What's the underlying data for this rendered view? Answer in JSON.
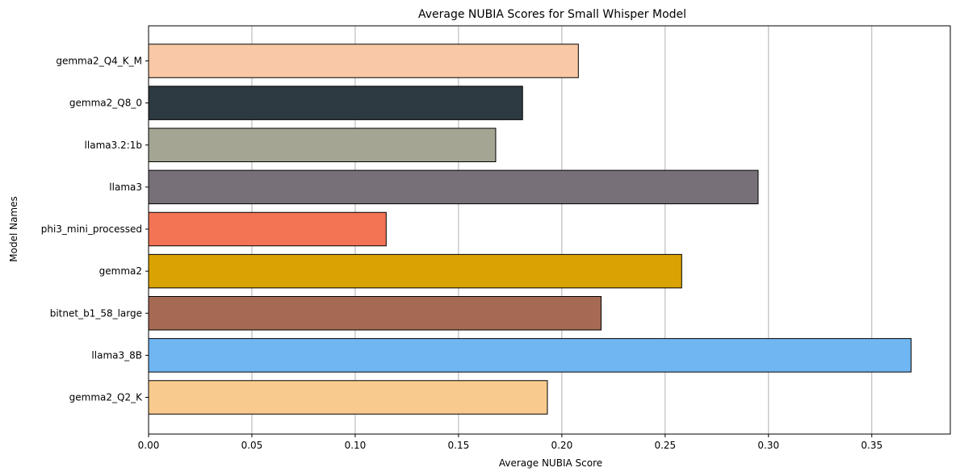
{
  "chart_data": {
    "type": "bar",
    "orientation": "horizontal",
    "title": "Average NUBIA Scores for Small Whisper Model",
    "xlabel": "Average NUBIA Score",
    "ylabel": "Model Names",
    "xlim": [
      0,
      0.388
    ],
    "xticks": [
      0.0,
      0.05,
      0.1,
      0.15,
      0.2,
      0.25,
      0.3,
      0.35
    ],
    "xtick_labels": [
      "0.00",
      "0.05",
      "0.10",
      "0.15",
      "0.20",
      "0.25",
      "0.30",
      "0.35"
    ],
    "grid": "x-axis vertical lines",
    "categories": [
      "gemma2_Q4_K_M",
      "gemma2_Q8_0",
      "llama3.2:1b",
      "llama3",
      "phi3_mini_processed",
      "gemma2",
      "bitnet_b1_58_large",
      "llama3_8B",
      "gemma2_Q2_K"
    ],
    "values": [
      0.208,
      0.181,
      0.168,
      0.295,
      0.115,
      0.258,
      0.219,
      0.369,
      0.193
    ],
    "colors": [
      "#F9C8A6",
      "#2D3A41",
      "#A4A592",
      "#787079",
      "#F27455",
      "#DAA304",
      "#A66A54",
      "#70B6F2",
      "#F9CA8E"
    ]
  }
}
